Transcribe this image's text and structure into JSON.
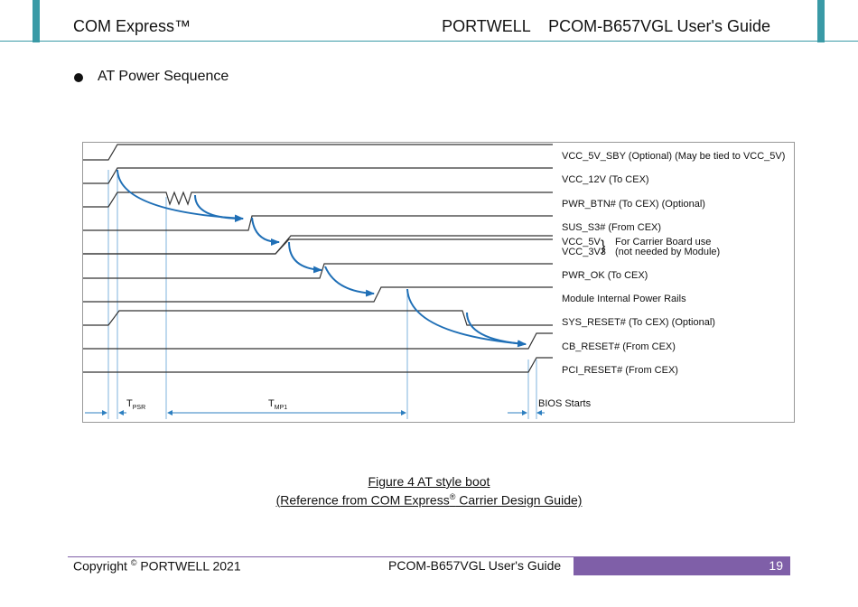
{
  "header": {
    "left": "COM Express™",
    "right": "PORTWELL    PCOM-B657VGL User's Guide"
  },
  "section": {
    "title": "AT Power Sequence"
  },
  "diagram": {
    "signals": [
      "VCC_5V_SBY (Optional) (May be tied to VCC_5V)",
      "VCC_12V (To CEX)",
      "PWR_BTN# (To CEX) (Optional)",
      "SUS_S3# (From CEX)",
      "VCC_5V",
      "VCC_3V3",
      "PWR_OK (To CEX)",
      "Module Internal Power Rails",
      "SYS_RESET# (To CEX) (Optional)",
      "CB_RESET# (From CEX)",
      "PCI_RESET# (From CEX)"
    ],
    "carrier_note_1": "For Carrier Board use",
    "carrier_note_2": "(not needed by Module)",
    "brace": "}",
    "tpsr_main": "T",
    "tpsr_sub": "PSR",
    "tmp1_main": "T",
    "tmp1_sub": "MP1",
    "bios": "BIOS Starts"
  },
  "caption": {
    "line1": "Figure 4 AT style boot",
    "line2_prefix": "(Reference from COM Express",
    "line2_sup": "®",
    "line2_suffix": " Carrier Design Guide)"
  },
  "footer": {
    "copyright_prefix": "Copyright ",
    "copyright_sup": "©",
    "copyright_suffix": " PORTWELL 2021",
    "doc": "PCOM-B657VGL User's Guide",
    "page": "19"
  }
}
